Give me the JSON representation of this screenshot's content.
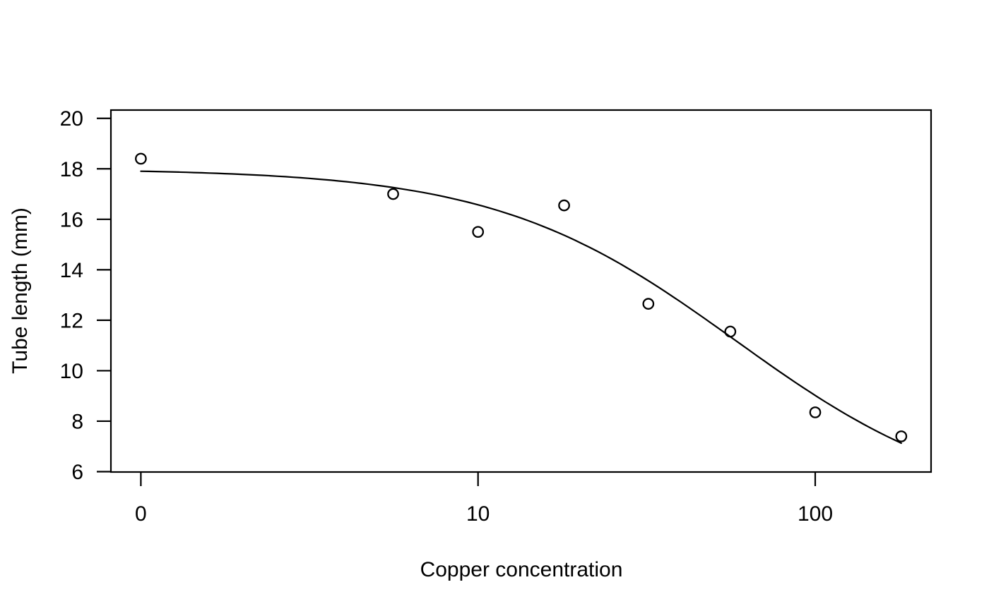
{
  "chart_data": {
    "type": "scatter",
    "title": "",
    "xlabel": "Copper concentration",
    "ylabel": "Tube length (mm)",
    "x_scale": "log10 (zero dose plotted at the '0' tick, one decade left of 10)",
    "x_ticks": [
      {
        "label": "0",
        "value": 0
      },
      {
        "label": "10",
        "value": 10
      },
      {
        "label": "100",
        "value": 100
      }
    ],
    "y_ticks": [
      "6",
      "8",
      "10",
      "12",
      "14",
      "16",
      "18",
      "20"
    ],
    "y_tick_values": [
      6,
      8,
      10,
      12,
      14,
      16,
      18,
      20
    ],
    "ylim": [
      6,
      20.35
    ],
    "xlim_log10": [
      -0.09,
      2.35
    ],
    "grid": false,
    "legend": "none",
    "points": [
      {
        "x": 0,
        "y": 18.4
      },
      {
        "x": 5.6,
        "y": 17.0
      },
      {
        "x": 10,
        "y": 15.5
      },
      {
        "x": 18,
        "y": 16.55
      },
      {
        "x": 32,
        "y": 12.65
      },
      {
        "x": 56,
        "y": 11.55
      },
      {
        "x": 100,
        "y": 8.35
      },
      {
        "x": 180,
        "y": 7.4
      }
    ],
    "fit_curve": {
      "model": "four-parameter log-logistic: y = c + (d - c) / (1 + (x / e)^b)",
      "b": 1.22,
      "c": 4.4,
      "d": 18.0,
      "e": 58,
      "x_range": [
        1,
        180
      ]
    },
    "marker": {
      "shape": "open-circle",
      "radius_px": 7.2,
      "color": "#000000"
    },
    "line_color": "#000000",
    "axis_color": "#000000",
    "background": "#FFFFFF"
  }
}
